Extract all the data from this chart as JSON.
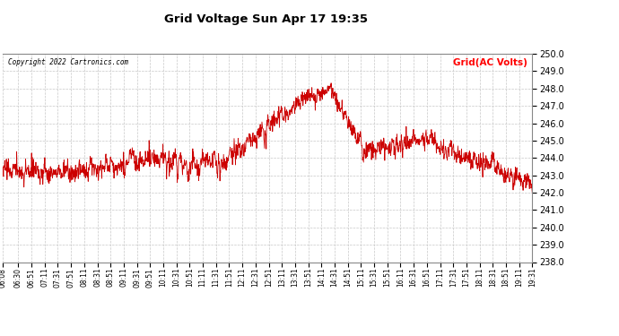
{
  "title": "Grid Voltage Sun Apr 17 19:35",
  "copyright": "Copyright 2022 Cartronics.com",
  "legend_label": "Grid(AC Volts)",
  "legend_color": "#ff0000",
  "line_color": "#cc0000",
  "background_color": "#ffffff",
  "grid_color": "#c8c8c8",
  "ylim": [
    238.0,
    250.0
  ],
  "yticks": [
    238.0,
    239.0,
    240.0,
    241.0,
    242.0,
    243.0,
    244.0,
    245.0,
    246.0,
    247.0,
    248.0,
    249.0,
    250.0
  ],
  "tick_labels": [
    "06:08",
    "06:30",
    "06:51",
    "07:11",
    "07:31",
    "07:51",
    "08:11",
    "08:31",
    "08:51",
    "09:11",
    "09:31",
    "09:51",
    "10:11",
    "10:31",
    "10:51",
    "11:11",
    "11:31",
    "11:51",
    "12:11",
    "12:31",
    "12:51",
    "13:11",
    "13:31",
    "13:51",
    "14:11",
    "14:31",
    "14:51",
    "15:11",
    "15:31",
    "15:51",
    "16:11",
    "16:31",
    "16:51",
    "17:11",
    "17:31",
    "17:51",
    "18:11",
    "18:31",
    "18:51",
    "19:11",
    "19:31"
  ]
}
